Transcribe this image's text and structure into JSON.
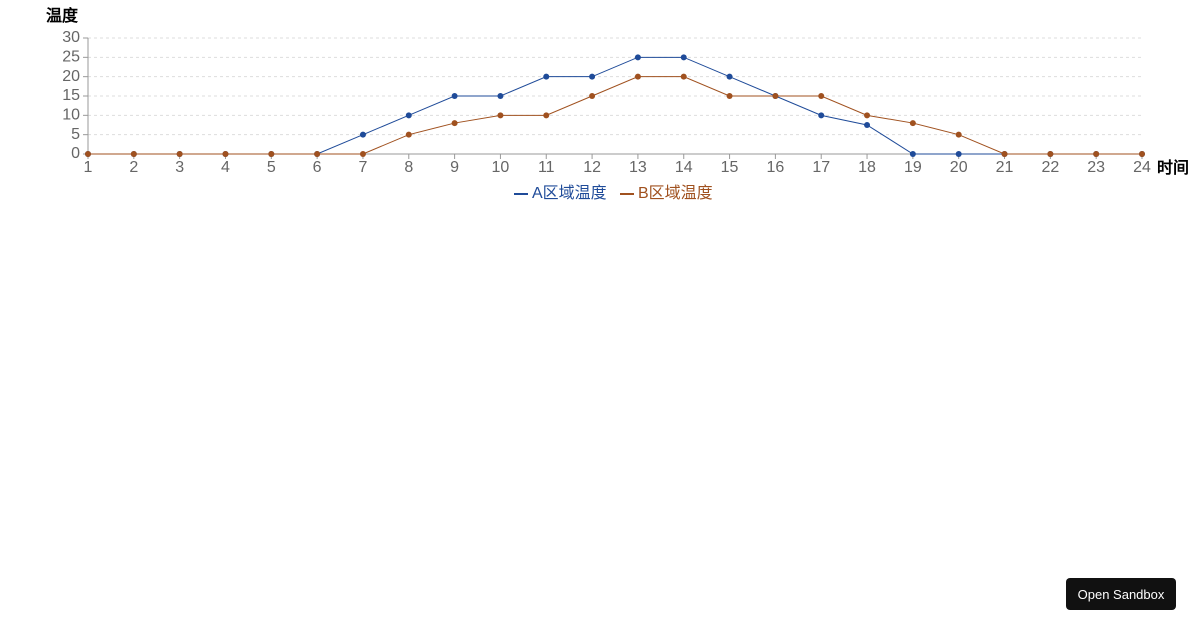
{
  "chart_data": {
    "type": "line",
    "y_label": "温度",
    "x_label": "时间",
    "x": [
      1,
      2,
      3,
      4,
      5,
      6,
      7,
      8,
      9,
      10,
      11,
      12,
      13,
      14,
      15,
      16,
      17,
      18,
      19,
      20,
      21,
      22,
      23,
      24
    ],
    "xlim": [
      1,
      24
    ],
    "xticks": [
      1,
      2,
      3,
      4,
      5,
      6,
      7,
      8,
      9,
      10,
      11,
      12,
      13,
      14,
      15,
      16,
      17,
      18,
      19,
      20,
      21,
      22,
      23,
      24
    ],
    "ylim": [
      0,
      30
    ],
    "yticks": [
      0,
      5,
      10,
      15,
      20,
      25,
      30
    ],
    "grid": true,
    "series": [
      {
        "name": "A区域温度",
        "color": "#1f4b99",
        "values": [
          0,
          0,
          0,
          0,
          0,
          0,
          5,
          10,
          15,
          15,
          20,
          20,
          25,
          25,
          20,
          15,
          10,
          7.5,
          0,
          0,
          0,
          0,
          0,
          0
        ]
      },
      {
        "name": "B区域温度",
        "color": "#a0511f",
        "values": [
          0,
          0,
          0,
          0,
          0,
          0,
          0,
          5,
          8,
          10,
          10,
          15,
          20,
          20,
          15,
          15,
          15,
          10,
          8,
          5,
          0,
          0,
          0,
          0
        ]
      }
    ]
  },
  "open_sandbox_label": "Open Sandbox"
}
